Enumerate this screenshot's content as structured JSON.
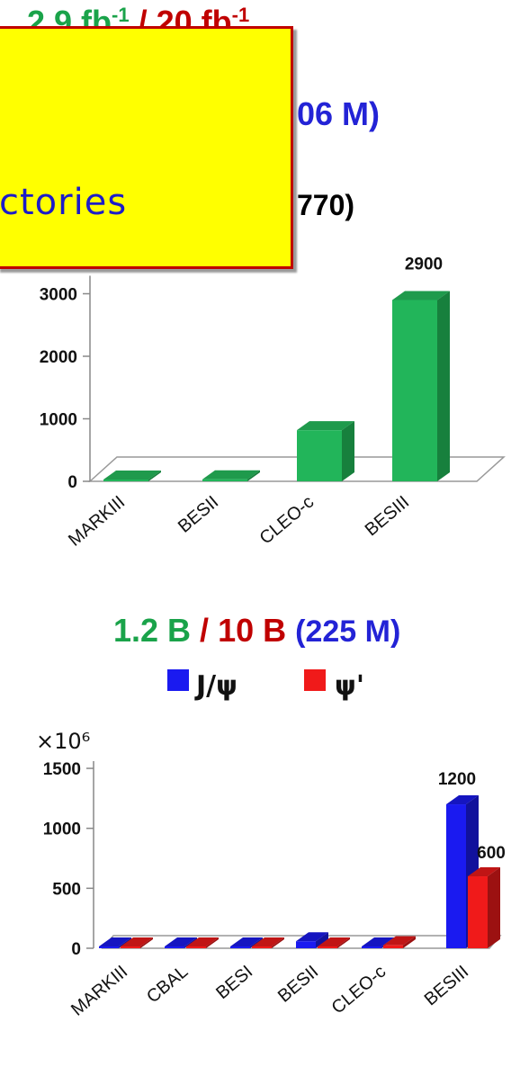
{
  "header_top": {
    "part1": "2.9 fb",
    "part1_sup": "-1",
    "sep": " / ",
    "part2": "20 fb",
    "part2_sup": "-1"
  },
  "header_dt": {
    "text": "06 M)"
  },
  "header_lum": {
    "text": "770)"
  },
  "callout": {
    "text": "ctories"
  },
  "header_psi": {
    "part1": "1.2 B",
    "sep": " / ",
    "part2": "10 B",
    "part3": "(225 M)"
  },
  "chart_data": [
    {
      "type": "bar",
      "categories": [
        "MARKIII",
        "BESII",
        "CLEO-c",
        "BESIII"
      ],
      "values": [
        9,
        33,
        818,
        2900
      ],
      "data_labels": [
        "",
        "",
        "",
        "2900"
      ],
      "yticks": [
        0,
        1000,
        2000,
        3000
      ],
      "ytick_labels": [
        "0",
        "1000",
        "2000",
        "3000"
      ],
      "ylim": [
        0,
        3000
      ],
      "colors": {
        "face": "#22b55a",
        "top": "#1f9a4c",
        "side": "#17803d"
      }
    },
    {
      "type": "bar",
      "categories": [
        "MARKIII",
        "CBAL",
        "BESI",
        "BESII",
        "CLEO-c",
        "BESIII"
      ],
      "series": [
        {
          "name": "J/ψ",
          "values": [
            6,
            2,
            8,
            58,
            2,
            1200
          ],
          "color": "#1a1af0"
        },
        {
          "name": "ψ'",
          "values": [
            2,
            1,
            4,
            14,
            25,
            600
          ],
          "color": "#f01a1a"
        }
      ],
      "data_labels": {
        "J/ψ": [
          "",
          "",
          "",
          "",
          "",
          "1200"
        ],
        "ψ'": [
          "",
          "",
          "",
          "",
          "",
          "600"
        ]
      },
      "yticks": [
        0,
        500,
        1000,
        1500
      ],
      "ytick_labels": [
        "0",
        "500",
        "1000",
        "1500"
      ],
      "ylim": [
        0,
        1500
      ],
      "y_multiplier": "×10⁶",
      "legend": "top"
    }
  ]
}
